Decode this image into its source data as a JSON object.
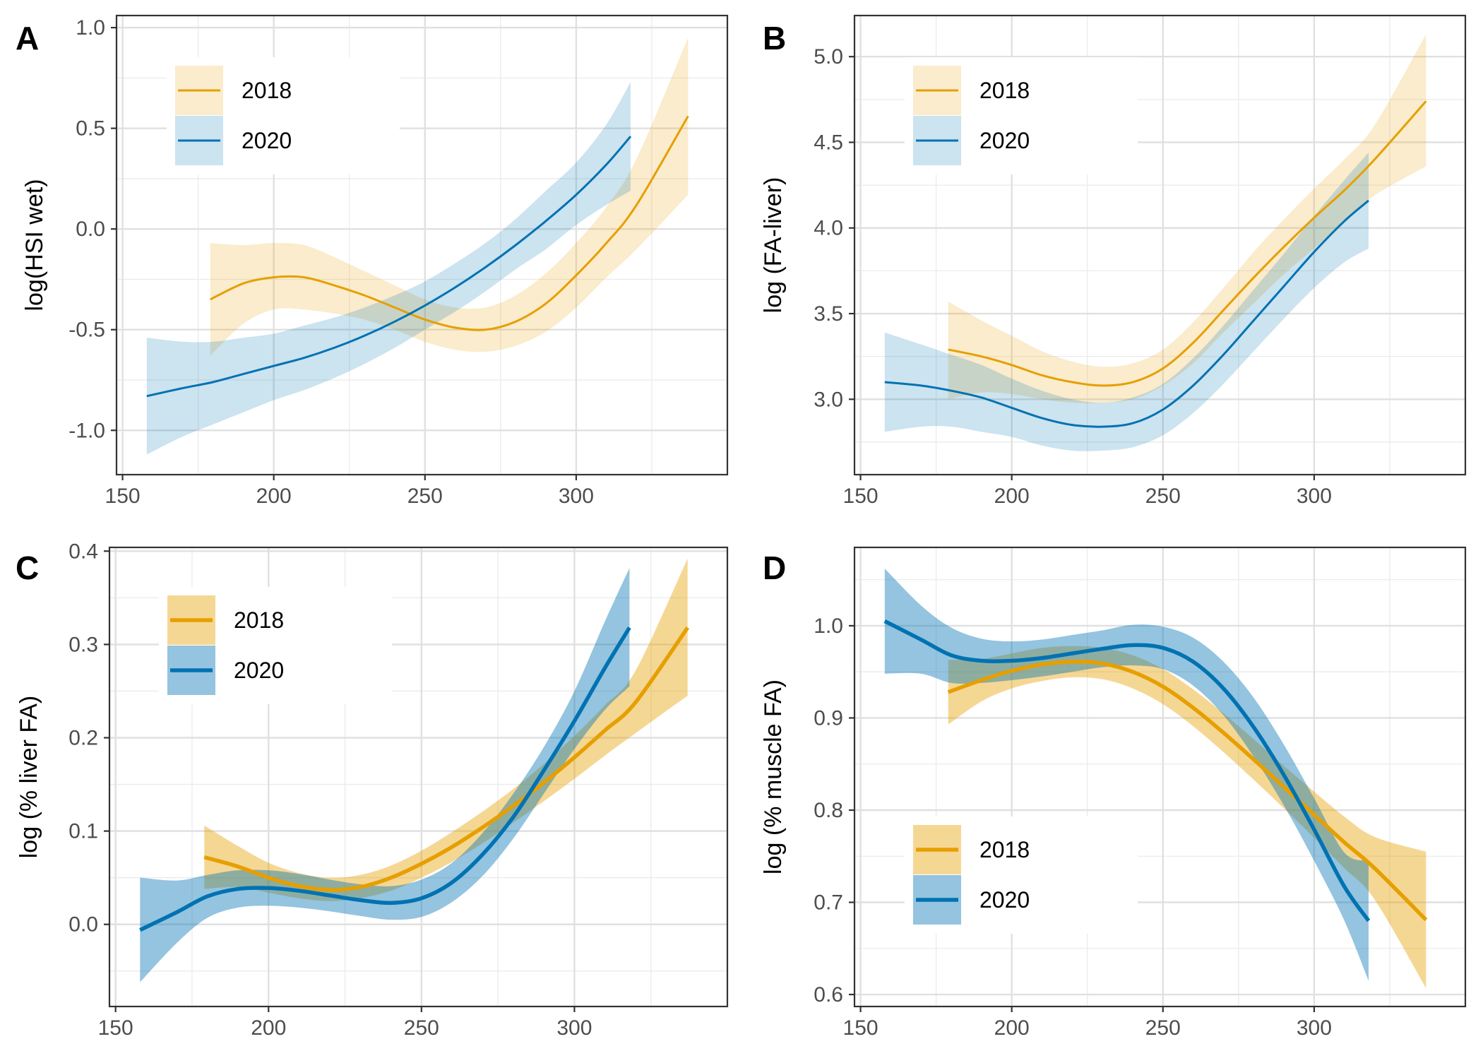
{
  "figure": {
    "colors": {
      "2018": "#E69F00",
      "2020": "#0072B2"
    }
  },
  "chart_data": [
    {
      "panel": "A",
      "type": "line",
      "title": "",
      "xlabel": "",
      "ylabel": "log(HSI wet)",
      "xlim": [
        148,
        350
      ],
      "ylim": [
        -1.22,
        1.06
      ],
      "x_ticks": [
        150,
        200,
        250,
        300
      ],
      "y_ticks": [
        -1.0,
        -0.5,
        0.0,
        0.5,
        1.0
      ],
      "y_tick_labels": [
        "-1.0",
        "-0.5",
        "0.0",
        "0.5",
        "1.0"
      ],
      "grid": true,
      "legend_position": "top-left",
      "series": [
        {
          "name": "2018",
          "x": [
            179,
            190,
            200,
            210,
            220,
            230,
            240,
            250,
            260,
            270,
            280,
            290,
            300,
            310,
            320,
            337
          ],
          "y": [
            -0.35,
            -0.27,
            -0.24,
            -0.24,
            -0.28,
            -0.33,
            -0.39,
            -0.45,
            -0.49,
            -0.5,
            -0.46,
            -0.37,
            -0.23,
            -0.07,
            0.12,
            0.56
          ],
          "lower": [
            -0.63,
            -0.47,
            -0.4,
            -0.4,
            -0.42,
            -0.45,
            -0.5,
            -0.56,
            -0.6,
            -0.61,
            -0.58,
            -0.51,
            -0.39,
            -0.24,
            -0.1,
            0.17
          ],
          "upper": [
            -0.07,
            -0.08,
            -0.07,
            -0.08,
            -0.14,
            -0.21,
            -0.28,
            -0.35,
            -0.39,
            -0.39,
            -0.33,
            -0.22,
            -0.07,
            0.11,
            0.35,
            0.95
          ]
        },
        {
          "name": "2020",
          "x": [
            158,
            170,
            180,
            190,
            200,
            210,
            220,
            230,
            240,
            250,
            260,
            270,
            280,
            290,
            300,
            310,
            318
          ],
          "y": [
            -0.83,
            -0.79,
            -0.76,
            -0.72,
            -0.68,
            -0.64,
            -0.59,
            -0.53,
            -0.46,
            -0.38,
            -0.29,
            -0.19,
            -0.08,
            0.04,
            0.17,
            0.32,
            0.46
          ],
          "lower": [
            -1.12,
            -1.03,
            -0.97,
            -0.91,
            -0.85,
            -0.8,
            -0.74,
            -0.67,
            -0.59,
            -0.5,
            -0.41,
            -0.31,
            -0.2,
            -0.1,
            0.02,
            0.12,
            0.19
          ],
          "upper": [
            -0.54,
            -0.56,
            -0.56,
            -0.54,
            -0.52,
            -0.48,
            -0.44,
            -0.39,
            -0.33,
            -0.26,
            -0.17,
            -0.07,
            0.05,
            0.19,
            0.33,
            0.52,
            0.73
          ]
        }
      ]
    },
    {
      "panel": "B",
      "type": "line",
      "title": "",
      "xlabel": "",
      "ylabel": "log (FA-liver)",
      "xlim": [
        148,
        350
      ],
      "ylim": [
        2.56,
        5.24
      ],
      "x_ticks": [
        150,
        200,
        250,
        300
      ],
      "y_ticks": [
        3.0,
        3.5,
        4.0,
        4.5,
        5.0
      ],
      "y_tick_labels": [
        "3.0",
        "3.5",
        "4.0",
        "4.5",
        "5.0"
      ],
      "grid": true,
      "legend_position": "top-left",
      "series": [
        {
          "name": "2018",
          "x": [
            179,
            190,
            200,
            210,
            220,
            230,
            240,
            250,
            260,
            270,
            280,
            290,
            300,
            310,
            320,
            337
          ],
          "y": [
            3.29,
            3.25,
            3.2,
            3.14,
            3.1,
            3.08,
            3.1,
            3.18,
            3.33,
            3.52,
            3.71,
            3.89,
            4.06,
            4.22,
            4.4,
            4.74
          ],
          "lower": [
            3.0,
            3.04,
            3.03,
            3.0,
            2.98,
            2.98,
            3.0,
            3.08,
            3.21,
            3.39,
            3.56,
            3.73,
            3.88,
            4.04,
            4.19,
            4.36
          ],
          "upper": [
            3.57,
            3.46,
            3.37,
            3.28,
            3.22,
            3.19,
            3.21,
            3.29,
            3.45,
            3.65,
            3.86,
            4.05,
            4.23,
            4.4,
            4.6,
            5.13
          ]
        },
        {
          "name": "2020",
          "x": [
            158,
            170,
            180,
            190,
            200,
            210,
            220,
            230,
            240,
            250,
            260,
            270,
            280,
            290,
            300,
            310,
            318
          ],
          "y": [
            3.1,
            3.08,
            3.05,
            3.01,
            2.95,
            2.89,
            2.85,
            2.84,
            2.86,
            2.94,
            3.08,
            3.26,
            3.46,
            3.66,
            3.86,
            4.04,
            4.16
          ],
          "lower": [
            2.81,
            2.84,
            2.84,
            2.81,
            2.78,
            2.73,
            2.7,
            2.7,
            2.72,
            2.79,
            2.92,
            3.09,
            3.28,
            3.47,
            3.65,
            3.8,
            3.88
          ],
          "upper": [
            3.39,
            3.32,
            3.26,
            3.2,
            3.12,
            3.05,
            3.0,
            2.98,
            3.01,
            3.09,
            3.24,
            3.43,
            3.64,
            3.85,
            4.07,
            4.28,
            4.44
          ]
        }
      ]
    },
    {
      "panel": "C",
      "type": "line",
      "title": "",
      "xlabel": "",
      "ylabel": "log (% liver FA)",
      "xlim": [
        148,
        350
      ],
      "ylim": [
        -0.088,
        0.404
      ],
      "x_ticks": [
        150,
        200,
        250,
        300
      ],
      "y_ticks": [
        0.0,
        0.1,
        0.2,
        0.3,
        0.4
      ],
      "y_tick_labels": [
        "0.0",
        "0.1",
        "0.2",
        "0.3",
        "0.4"
      ],
      "grid": true,
      "legend_position": "top-left",
      "series": [
        {
          "name": "2018",
          "x": [
            179,
            190,
            200,
            210,
            220,
            230,
            240,
            250,
            260,
            270,
            280,
            290,
            300,
            310,
            320,
            337
          ],
          "y": [
            0.072,
            0.062,
            0.05,
            0.041,
            0.037,
            0.04,
            0.05,
            0.065,
            0.083,
            0.104,
            0.127,
            0.152,
            0.179,
            0.208,
            0.238,
            0.318
          ],
          "lower": [
            0.038,
            0.04,
            0.034,
            0.028,
            0.025,
            0.028,
            0.036,
            0.05,
            0.067,
            0.087,
            0.109,
            0.132,
            0.156,
            0.181,
            0.205,
            0.245
          ],
          "upper": [
            0.106,
            0.084,
            0.066,
            0.055,
            0.05,
            0.053,
            0.063,
            0.079,
            0.099,
            0.121,
            0.145,
            0.172,
            0.202,
            0.235,
            0.272,
            0.392
          ]
        },
        {
          "name": "2020",
          "x": [
            158,
            170,
            180,
            190,
            200,
            210,
            220,
            230,
            240,
            250,
            260,
            270,
            280,
            290,
            300,
            310,
            318
          ],
          "y": [
            -0.006,
            0.013,
            0.03,
            0.038,
            0.039,
            0.036,
            0.031,
            0.026,
            0.023,
            0.028,
            0.045,
            0.075,
            0.115,
            0.165,
            0.218,
            0.275,
            0.318
          ],
          "lower": [
            -0.062,
            -0.02,
            0.007,
            0.018,
            0.02,
            0.018,
            0.014,
            0.009,
            0.005,
            0.008,
            0.024,
            0.052,
            0.092,
            0.14,
            0.188,
            0.23,
            0.255
          ],
          "upper": [
            0.05,
            0.047,
            0.053,
            0.058,
            0.058,
            0.054,
            0.048,
            0.043,
            0.041,
            0.048,
            0.066,
            0.098,
            0.14,
            0.19,
            0.25,
            0.325,
            0.382
          ]
        }
      ]
    },
    {
      "panel": "D",
      "type": "line",
      "title": "",
      "xlabel": "",
      "ylabel": "log (% muscle FA)",
      "xlim": [
        148,
        350
      ],
      "ylim": [
        0.587,
        1.085
      ],
      "x_ticks": [
        150,
        200,
        250,
        300
      ],
      "y_ticks": [
        0.6,
        0.7,
        0.8,
        0.9,
        1.0
      ],
      "y_tick_labels": [
        "0.6",
        "0.7",
        "0.8",
        "0.9",
        "1.0"
      ],
      "grid": true,
      "legend_position": "bottom-left",
      "series": [
        {
          "name": "2018",
          "x": [
            179,
            190,
            200,
            210,
            220,
            230,
            240,
            250,
            260,
            270,
            280,
            290,
            300,
            310,
            320,
            337
          ],
          "y": [
            0.928,
            0.941,
            0.951,
            0.958,
            0.961,
            0.959,
            0.95,
            0.934,
            0.911,
            0.884,
            0.855,
            0.825,
            0.795,
            0.765,
            0.737,
            0.681
          ],
          "lower": [
            0.893,
            0.918,
            0.932,
            0.94,
            0.944,
            0.942,
            0.932,
            0.915,
            0.891,
            0.863,
            0.833,
            0.802,
            0.77,
            0.737,
            0.703,
            0.607
          ],
          "upper": [
            0.963,
            0.964,
            0.97,
            0.976,
            0.978,
            0.976,
            0.968,
            0.953,
            0.931,
            0.905,
            0.877,
            0.848,
            0.82,
            0.793,
            0.771,
            0.755
          ]
        },
        {
          "name": "2020",
          "x": [
            158,
            170,
            180,
            190,
            200,
            210,
            220,
            230,
            240,
            250,
            260,
            270,
            280,
            290,
            300,
            310,
            318
          ],
          "y": [
            1.005,
            0.985,
            0.968,
            0.962,
            0.962,
            0.965,
            0.97,
            0.975,
            0.979,
            0.976,
            0.961,
            0.932,
            0.89,
            0.838,
            0.779,
            0.717,
            0.68
          ],
          "lower": [
            0.948,
            0.948,
            0.938,
            0.938,
            0.941,
            0.945,
            0.95,
            0.955,
            0.957,
            0.953,
            0.935,
            0.903,
            0.858,
            0.805,
            0.745,
            0.68,
            0.615
          ],
          "upper": [
            1.062,
            1.022,
            0.998,
            0.986,
            0.983,
            0.985,
            0.99,
            0.995,
            1.001,
            0.999,
            0.987,
            0.961,
            0.922,
            0.871,
            0.813,
            0.754,
            0.745
          ]
        }
      ]
    }
  ]
}
